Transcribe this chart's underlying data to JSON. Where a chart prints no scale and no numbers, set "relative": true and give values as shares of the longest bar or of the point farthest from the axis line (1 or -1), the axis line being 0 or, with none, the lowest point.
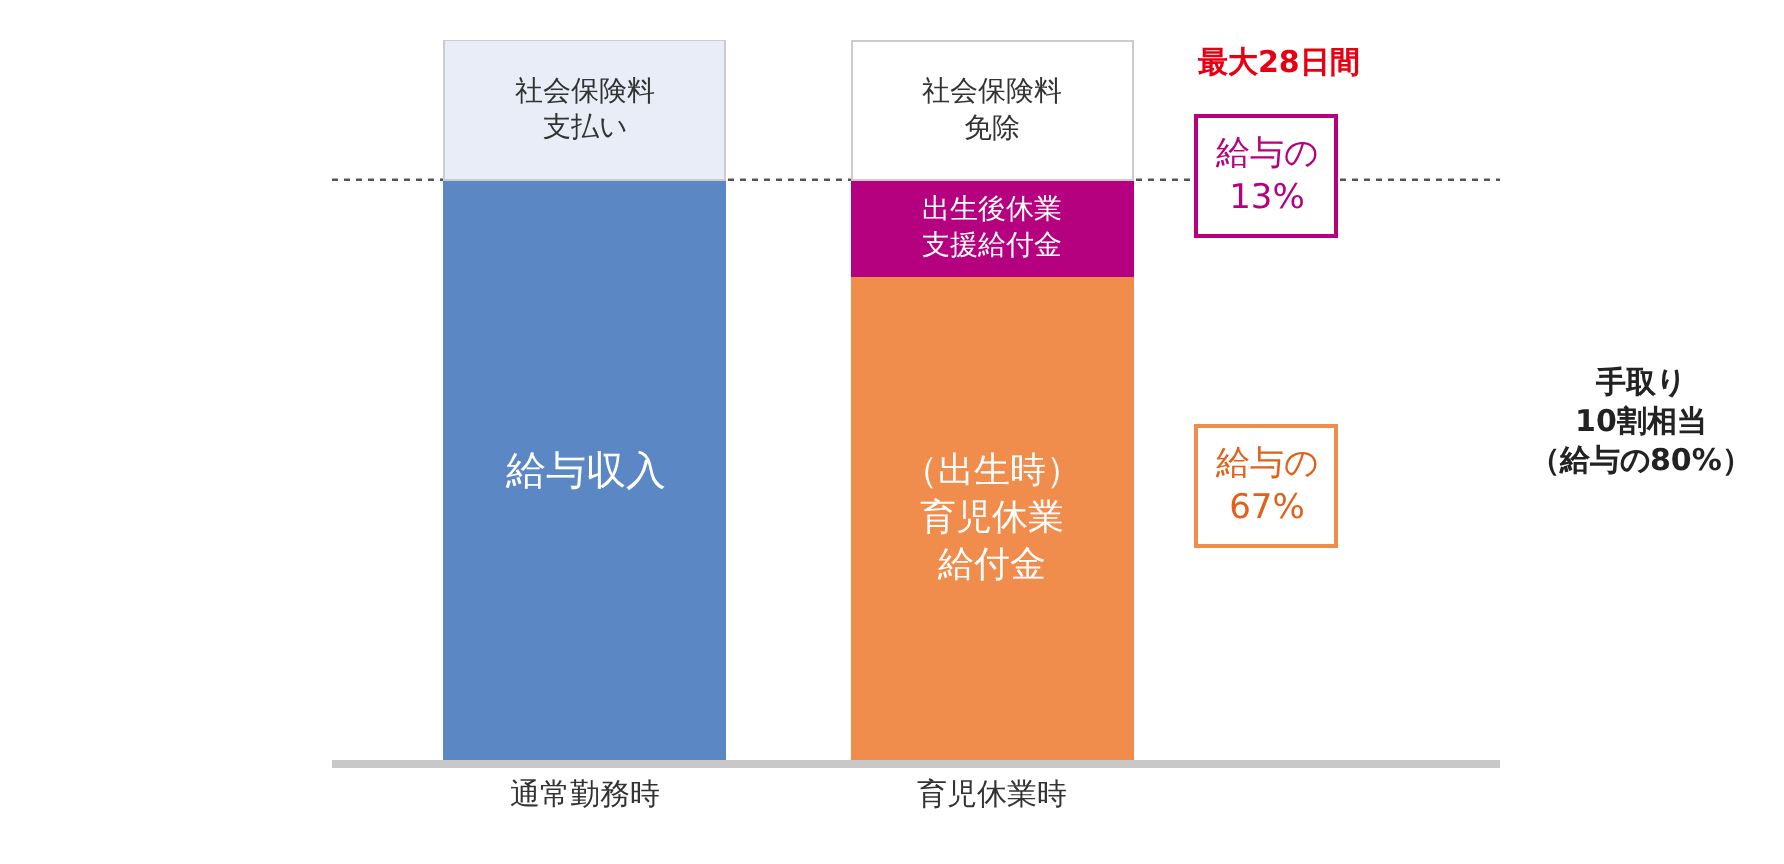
{
  "chart_data": {
    "type": "bar",
    "stacked": true,
    "relative": true,
    "categories": [
      "通常勤務時",
      "育児休業時"
    ],
    "series": [
      {
        "name": "給与収入",
        "color": "#5b87c5",
        "values": [
          0.806,
          null
        ]
      },
      {
        "name": "（出生時）育児休業給付金",
        "color": "#f08c4c",
        "values": [
          null,
          0.672
        ]
      },
      {
        "name": "出生後休業支援給付金",
        "color": "#b5007f",
        "values": [
          null,
          0.133
        ]
      },
      {
        "name": "社会保険料支払い",
        "color": "#e8edf7",
        "values": [
          0.194,
          null
        ]
      },
      {
        "name": "社会保険料免除",
        "color": "#ffffff",
        "values": [
          null,
          0.194
        ]
      }
    ],
    "ref_lines": [
      {
        "axis": "y",
        "value": 0.806,
        "color": "#555555",
        "line_style": "dotted"
      }
    ],
    "annotations": [
      "最大28日間",
      "給与の13%",
      "給与の67%",
      "手取り10割相当（給与の80%）"
    ],
    "legend": false
  }
}
